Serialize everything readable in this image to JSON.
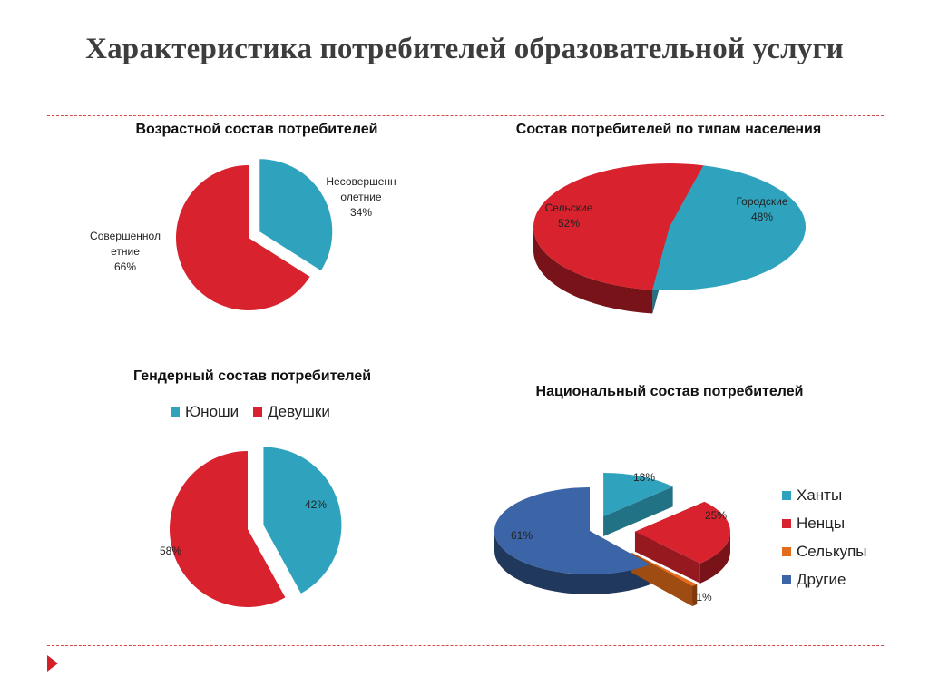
{
  "slide": {
    "title": "Характеристика потребителей образовательной услуги"
  },
  "colors": {
    "teal": "#2fa3bd",
    "red": "#d8232e",
    "orange": "#e36c1b",
    "blue": "#3b65a6",
    "rule": "#d84a4a",
    "arrow": "#d21f2a"
  },
  "chart_data": [
    {
      "type": "pie",
      "title": "Возрастной состав потребителей",
      "slices": [
        {
          "name_lines": [
            "Несовершенн",
            "олетние"
          ],
          "pct_label": "34%",
          "value": 34,
          "color": "#2fa3bd"
        },
        {
          "name_lines": [
            "Совершеннол",
            "етние"
          ],
          "pct_label": "66%",
          "value": 66,
          "color": "#d8232e"
        }
      ]
    },
    {
      "type": "pie",
      "title": "Состав потребителей по типам населения",
      "slices": [
        {
          "name": "Сельские",
          "pct_label": "52%",
          "value": 52,
          "color": "#d8232e"
        },
        {
          "name": "Городские",
          "pct_label": "48%",
          "value": 48,
          "color": "#2fa3bd"
        }
      ]
    },
    {
      "type": "pie",
      "title": "Гендерный состав потребителей",
      "legend": [
        "Юноши",
        "Девушки"
      ],
      "slices": [
        {
          "name": "Юноши",
          "pct_label": "42%",
          "value": 42,
          "color": "#2fa3bd"
        },
        {
          "name": "Девушки",
          "pct_label": "58%",
          "value": 58,
          "color": "#d8232e"
        }
      ]
    },
    {
      "type": "pie",
      "title": "Национальный состав потребителей",
      "legend": [
        "Ханты",
        "Ненцы",
        "Селькупы",
        "Другие"
      ],
      "slices": [
        {
          "name": "Ханты",
          "pct_label": "13%",
          "value": 13,
          "color": "#2fa3bd"
        },
        {
          "name": "Ненцы",
          "pct_label": "25%",
          "value": 25,
          "color": "#d8232e"
        },
        {
          "name": "Селькупы",
          "pct_label": "1%",
          "value": 1,
          "color": "#e36c1b"
        },
        {
          "name": "Другие",
          "pct_label": "61%",
          "value": 61,
          "color": "#3b65a6"
        }
      ]
    }
  ]
}
